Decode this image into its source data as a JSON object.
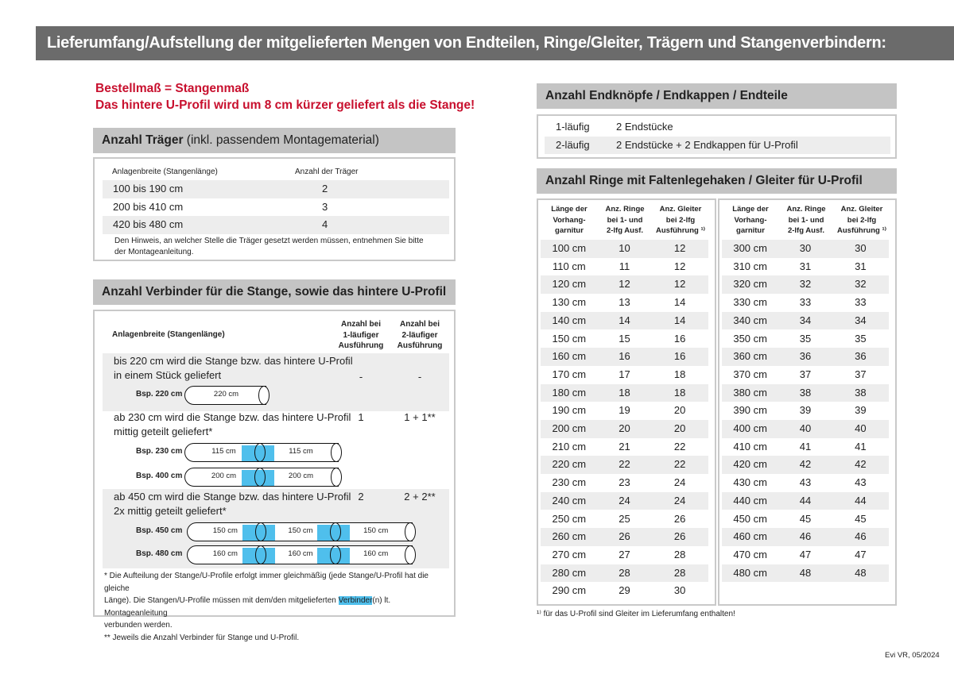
{
  "title": "Lieferumfang/Aufstellung der mitgelieferten Mengen von Endteilen, Ringe/Gleiter, Trägern und Stangenverbindern:",
  "notice": {
    "line1": "Bestellmaß = Stangenmaß",
    "line2": "Das hintere U-Profil wird um 8 cm kürzer geliefert als die Stange!"
  },
  "traeger": {
    "heading_bold": "Anzahl Träger",
    "heading_rest": " (inkl. passendem Montagematerial)",
    "col1": "Anlagenbreite (Stangenlänge)",
    "col2": "Anzahl der Träger",
    "rows": [
      {
        "range": "100 bis 190 cm",
        "count": "2"
      },
      {
        "range": "200 bis 410 cm",
        "count": "3"
      },
      {
        "range": "420 bis 480 cm",
        "count": "4"
      }
    ],
    "note_line1": "Den Hinweis, an welcher Stelle die Träger gesetzt werden müssen, entnehmen Sie bitte",
    "note_line2": "der Montageanleitung."
  },
  "verbinder": {
    "heading": "Anzahl Verbinder für die Stange, sowie das hintere U-Profil",
    "col1": "Anlagenbreite (Stangenlänge)",
    "col2": [
      "Anzahl bei",
      "1-läufiger",
      "Ausführung"
    ],
    "col3": [
      "Anzahl bei",
      "2-läufiger",
      "Ausführung"
    ],
    "rows": [
      {
        "line1": "bis 220 cm wird die Stange bzw. das hintere U-Profil",
        "line2": "in einem Stück geliefert",
        "one": "-",
        "two": "-"
      },
      {
        "line1": "ab 230 cm wird die Stange bzw. das hintere U-Profil",
        "line2": "mittig geteilt geliefert*",
        "one": "1",
        "two": "1 + 1**"
      },
      {
        "line1": "ab 450 cm wird die Stange bzw. das hintere U-Profil",
        "line2": "2x mittig geteilt geliefert*",
        "one": "2",
        "two": "2 + 2**"
      }
    ],
    "examples": [
      {
        "label": "Bsp. 220 cm",
        "segments": [
          "220 cm"
        ]
      },
      {
        "label": "Bsp. 230 cm",
        "segments": [
          "115 cm",
          "115 cm"
        ]
      },
      {
        "label": "Bsp. 400 cm",
        "segments": [
          "200 cm",
          "200 cm"
        ]
      },
      {
        "label": "Bsp. 450 cm",
        "segments": [
          "150 cm",
          "150 cm",
          "150 cm"
        ]
      },
      {
        "label": "Bsp. 480 cm",
        "segments": [
          "160 cm",
          "160 cm",
          "160 cm"
        ]
      }
    ],
    "foot1a": "* Die Aufteilung der Stange/U-Profile erfolgt immer gleichmäßig (jede Stange/U-Profil hat die gleiche",
    "foot1b_pre": "Länge). Die Stangen/U-Profile müssen mit dem/den mitgelieferten ",
    "foot1b_hl": "Verbinder",
    "foot1b_post": "(n) lt. Montageanleitung",
    "foot1c": "verbunden werden.",
    "foot2": "** Jeweils die Anzahl Verbinder für Stange und U-Profil.",
    "highlight_color": "#4fbfec"
  },
  "endteile": {
    "heading": "Anzahl Endknöpfe / Endkappen / Endteile",
    "rows": [
      {
        "type": "1-läufig",
        "value": "2 Endstücke"
      },
      {
        "type": "2-läufig",
        "value": "2 Endstücke + 2 Endkappen für U-Profil"
      }
    ]
  },
  "ringe": {
    "heading": "Anzahl Ringe mit Faltenlegehaken / Gleiter für U-Profil",
    "headers": [
      [
        "Länge der",
        "Vorhang-",
        "garnitur"
      ],
      [
        "Anz. Ringe",
        "bei 1- und",
        "2-lfg Ausf."
      ],
      [
        "Anz. Gleiter",
        "bei 2-lfg",
        "Ausführung ¹⁾"
      ]
    ],
    "left": [
      [
        "100 cm",
        "10",
        "12"
      ],
      [
        "110 cm",
        "11",
        "12"
      ],
      [
        "120 cm",
        "12",
        "12"
      ],
      [
        "130 cm",
        "13",
        "14"
      ],
      [
        "140 cm",
        "14",
        "14"
      ],
      [
        "150 cm",
        "15",
        "16"
      ],
      [
        "160 cm",
        "16",
        "16"
      ],
      [
        "170 cm",
        "17",
        "18"
      ],
      [
        "180 cm",
        "18",
        "18"
      ],
      [
        "190 cm",
        "19",
        "20"
      ],
      [
        "200 cm",
        "20",
        "20"
      ],
      [
        "210 cm",
        "21",
        "22"
      ],
      [
        "220 cm",
        "22",
        "22"
      ],
      [
        "230 cm",
        "23",
        "24"
      ],
      [
        "240 cm",
        "24",
        "24"
      ],
      [
        "250 cm",
        "25",
        "26"
      ],
      [
        "260 cm",
        "26",
        "26"
      ],
      [
        "270 cm",
        "27",
        "28"
      ],
      [
        "280 cm",
        "28",
        "28"
      ],
      [
        "290 cm",
        "29",
        "30"
      ]
    ],
    "right": [
      [
        "300 cm",
        "30",
        "30"
      ],
      [
        "310 cm",
        "31",
        "31"
      ],
      [
        "320 cm",
        "32",
        "32"
      ],
      [
        "330 cm",
        "33",
        "33"
      ],
      [
        "340 cm",
        "34",
        "34"
      ],
      [
        "350 cm",
        "35",
        "35"
      ],
      [
        "360 cm",
        "36",
        "36"
      ],
      [
        "370 cm",
        "37",
        "37"
      ],
      [
        "380 cm",
        "38",
        "38"
      ],
      [
        "390 cm",
        "39",
        "39"
      ],
      [
        "400 cm",
        "40",
        "40"
      ],
      [
        "410 cm",
        "41",
        "41"
      ],
      [
        "420 cm",
        "42",
        "42"
      ],
      [
        "430 cm",
        "43",
        "43"
      ],
      [
        "440 cm",
        "44",
        "44"
      ],
      [
        "450 cm",
        "45",
        "45"
      ],
      [
        "460 cm",
        "46",
        "46"
      ],
      [
        "470 cm",
        "47",
        "47"
      ],
      [
        "480 cm",
        "48",
        "48"
      ]
    ],
    "footnote": "¹⁾ für das U-Profil sind Gleiter im Lieferumfang enthalten!"
  },
  "footer": "Evi VR, 05/2024"
}
